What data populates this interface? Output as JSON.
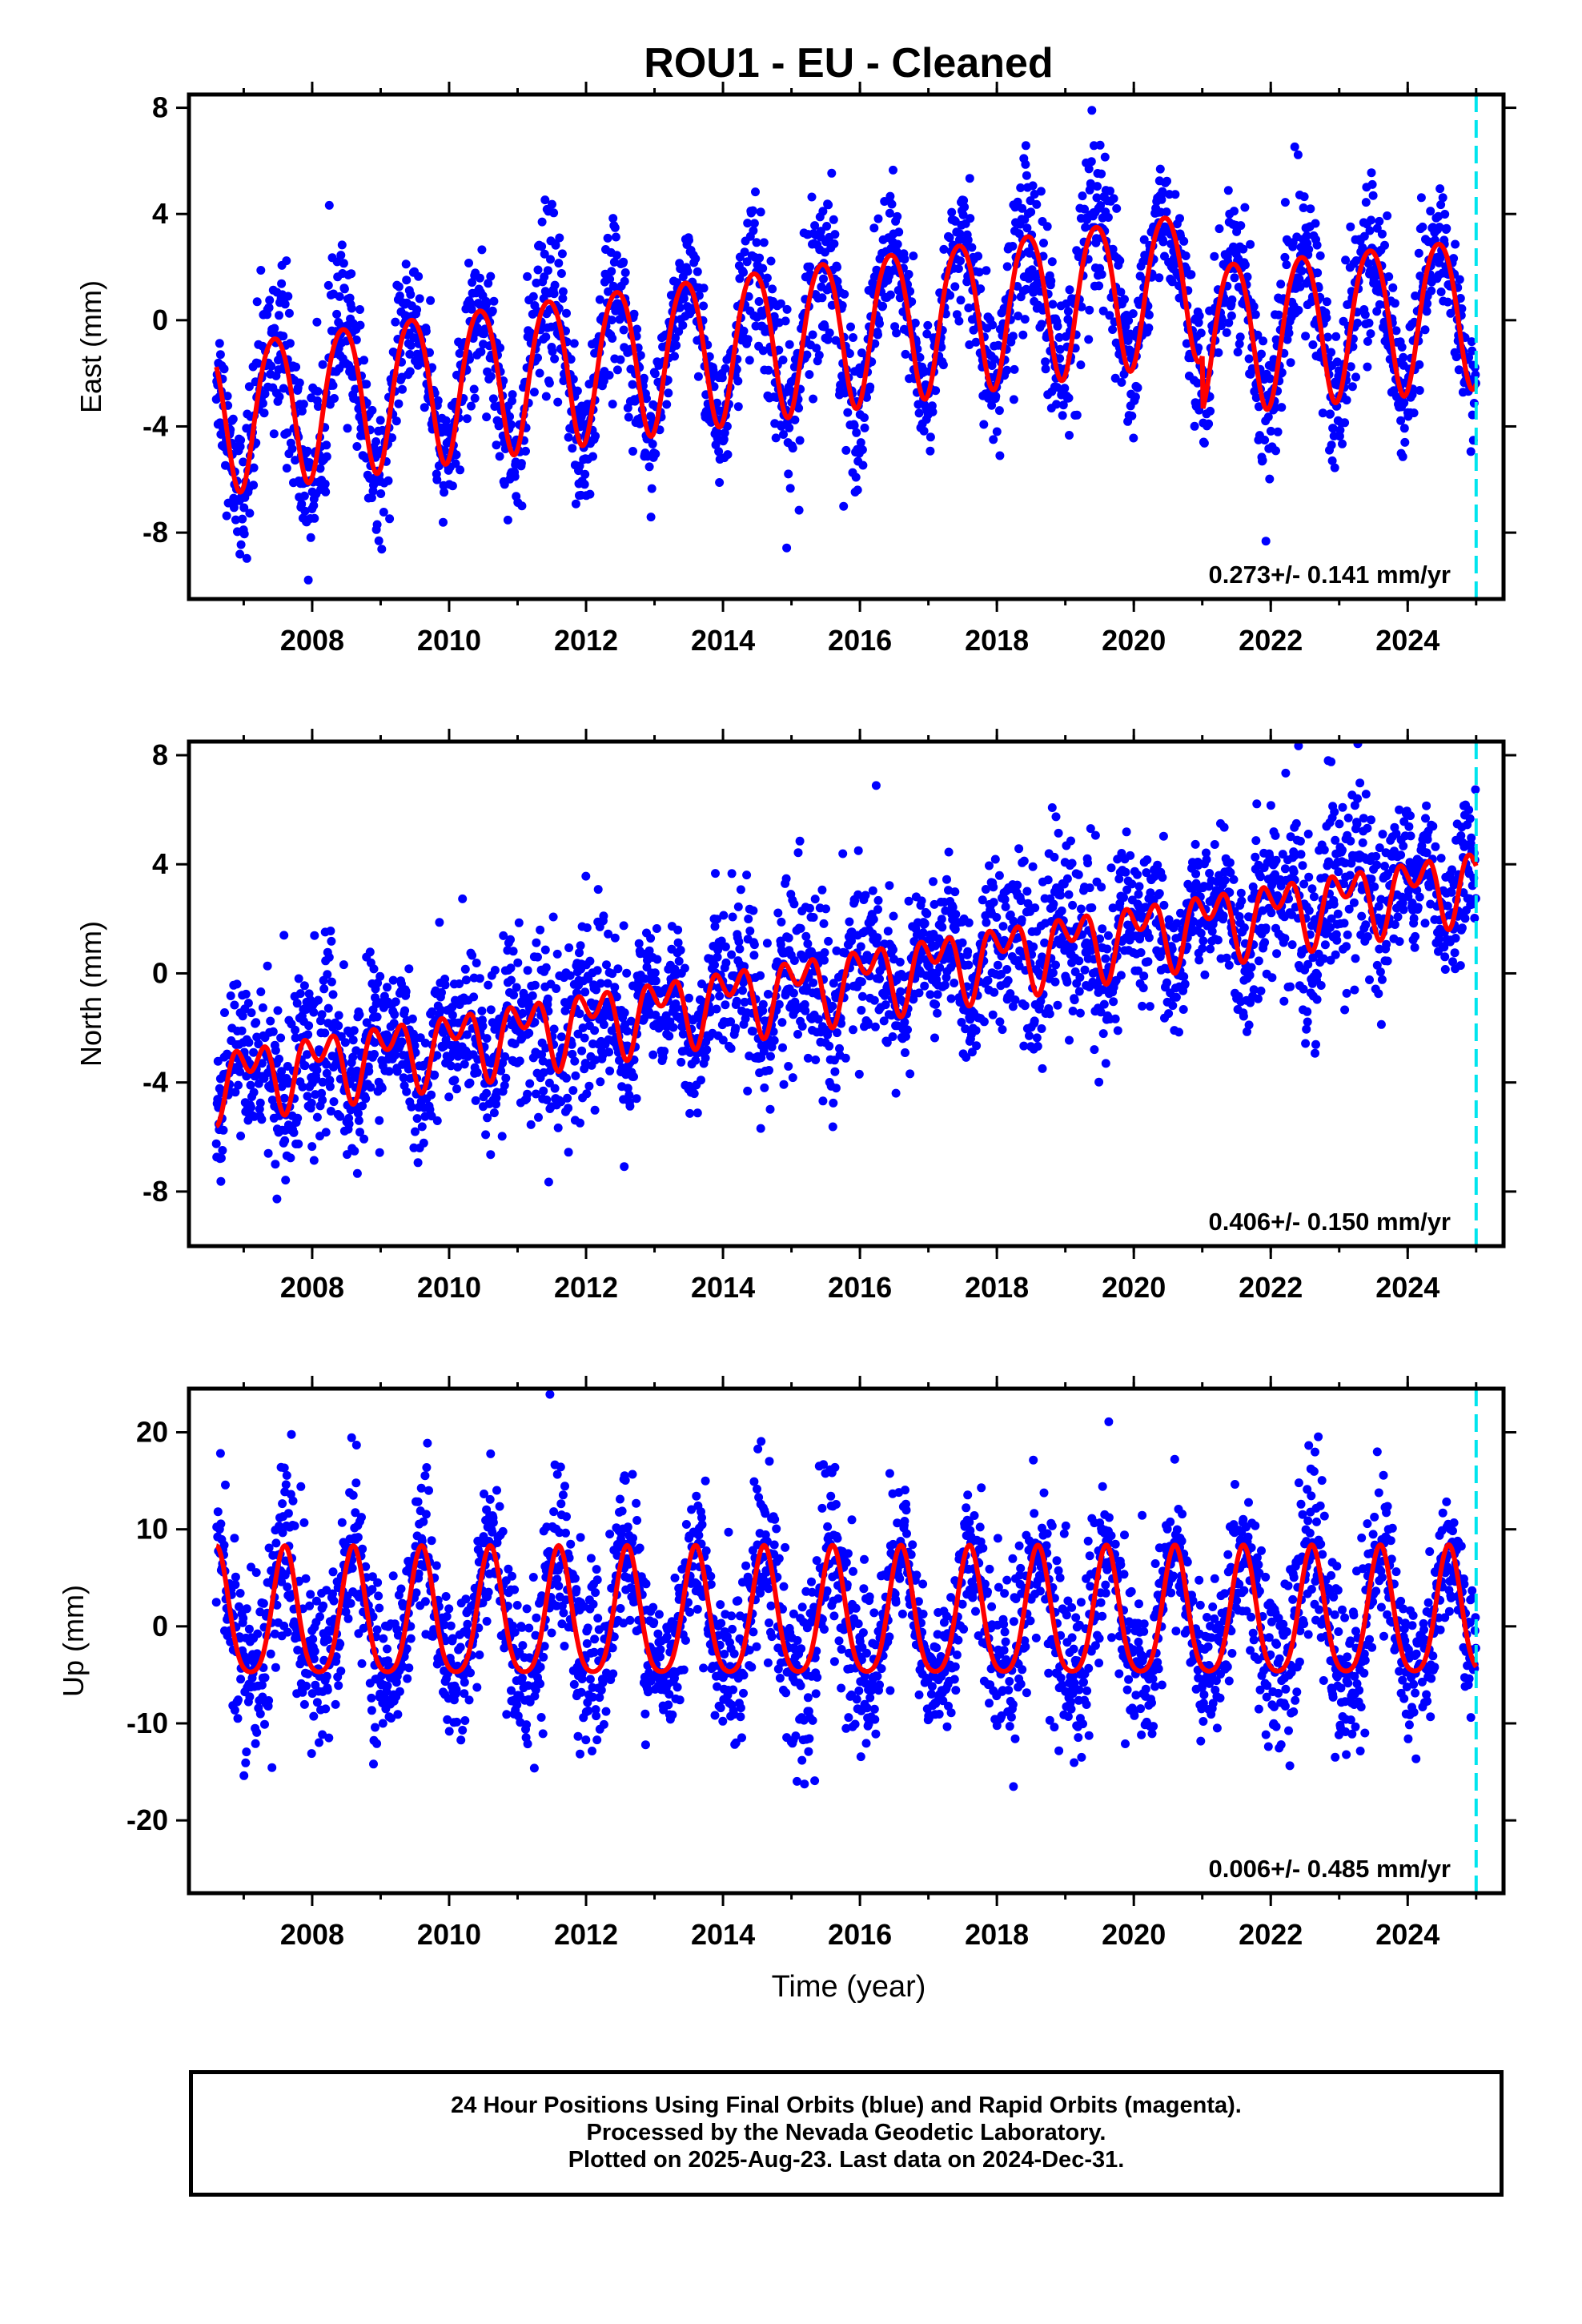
{
  "title": "ROU1  - EU - Cleaned",
  "xlabel": "Time (year)",
  "colors": {
    "final_orbits": "#0000ff",
    "model": "#ff0000",
    "last_data_marker": "#00e5ee",
    "axis": "#000000"
  },
  "footer": {
    "line1": "24 Hour Positions Using Final Orbits (blue) and Rapid Orbits (magenta).",
    "line2": "Processed by the Nevada Geodetic Laboratory.",
    "line3": "Plotted on 2025-Aug-23. Last data on 2024-Dec-31."
  },
  "chart_data": [
    {
      "type": "scatter",
      "component": "east",
      "ylabel": "East (mm)",
      "rate_label": "0.273+/- 0.141 mm/yr",
      "xlim": [
        2006.2,
        2025.4
      ],
      "ylim": [
        -10.5,
        8.5
      ],
      "yticks": [
        -8,
        -4,
        0,
        4,
        8
      ],
      "xticks": [
        2008,
        2010,
        2012,
        2014,
        2016,
        2018,
        2020,
        2022,
        2024
      ],
      "data_start": 2006.6,
      "data_end": 2025.0,
      "last_data_marker": 2025.0,
      "model": {
        "offset_before_2021": -3.5,
        "trend_before_2021": 0.35,
        "offset_after_2021": -0.5,
        "trend_after_2021": 0.25,
        "annual_amplitude": 2.8,
        "annual_peak_fraction": 0.45,
        "semiannual_amplitude": 0.3
      },
      "scatter_std": 1.35,
      "series": [
        {
          "name": "Final Orbits (blue)",
          "role": "observations"
        },
        {
          "name": "Model",
          "role": "fit"
        }
      ]
    },
    {
      "type": "scatter",
      "component": "north",
      "ylabel": "North (mm)",
      "rate_label": "0.406+/- 0.150 mm/yr",
      "xlim": [
        2006.2,
        2025.4
      ],
      "ylim": [
        -10,
        8.5
      ],
      "yticks": [
        -8,
        -4,
        0,
        4,
        8
      ],
      "xticks": [
        2008,
        2010,
        2012,
        2014,
        2016,
        2018,
        2020,
        2022,
        2024
      ],
      "data_start": 2006.6,
      "data_end": 2025.0,
      "last_data_marker": 2025.0,
      "model": {
        "offset_at_2006_6": -3.9,
        "trend": 0.4,
        "annual_amplitude": 0.9,
        "annual_peak_fraction": 0.1,
        "semiannual_amplitude": 0.8,
        "semiannual_peak_fraction": 0.35
      },
      "scatter_std": 1.5,
      "series": [
        {
          "name": "Final Orbits (blue)",
          "role": "observations"
        },
        {
          "name": "Model",
          "role": "fit"
        }
      ]
    },
    {
      "type": "scatter",
      "component": "up",
      "ylabel": "Up (mm)",
      "rate_label": "0.006+/- 0.485 mm/yr",
      "xlim": [
        2006.2,
        2025.4
      ],
      "ylim": [
        -27.5,
        24.5
      ],
      "yticks": [
        -20,
        -10,
        0,
        10,
        20
      ],
      "xticks": [
        2008,
        2010,
        2012,
        2014,
        2016,
        2018,
        2020,
        2022,
        2024
      ],
      "data_start": 2006.6,
      "data_end": 2025.0,
      "last_data_marker": 2025.0,
      "model": {
        "offset": 0.6,
        "trend": 0.006,
        "annual_amplitude": 6.5,
        "annual_peak_fraction": 0.6,
        "semiannual_amplitude": 1.2
      },
      "scatter_std": 4.2,
      "series": [
        {
          "name": "Final Orbits (blue)",
          "role": "observations"
        },
        {
          "name": "Model",
          "role": "fit"
        }
      ]
    }
  ]
}
